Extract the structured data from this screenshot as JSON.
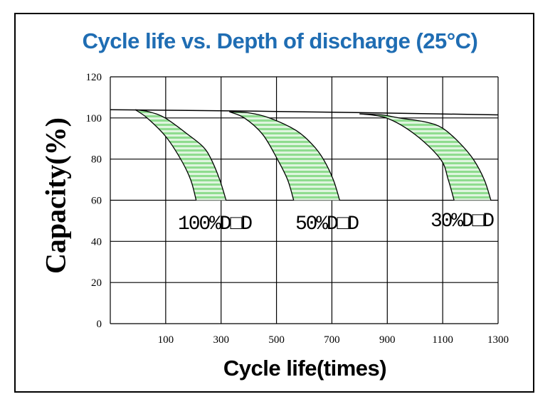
{
  "chart_data": {
    "type": "area",
    "title": "Cycle life vs. Depth of discharge (25°C)",
    "xlabel": "Cycle life(times)",
    "ylabel": "Capacity(%)",
    "xlim": [
      -100,
      1300
    ],
    "ylim": [
      0,
      120
    ],
    "xticks": [
      100,
      300,
      500,
      700,
      900,
      1100,
      1300
    ],
    "yticks": [
      0,
      20,
      40,
      60,
      80,
      100,
      120
    ],
    "grid": true,
    "fill_color": "#8fdc8f",
    "title_color": "#1f6db3",
    "baseline": [
      [
        -100,
        104
      ],
      [
        300,
        103.5
      ],
      [
        700,
        102.8
      ],
      [
        1300,
        101.5
      ]
    ],
    "series": [
      {
        "name": "100%D□D",
        "lower": [
          [
            -10,
            104
          ],
          [
            33,
            100
          ],
          [
            100,
            91
          ],
          [
            154,
            80
          ],
          [
            190,
            70
          ],
          [
            210,
            60
          ]
        ],
        "upper": [
          [
            -10,
            104
          ],
          [
            40,
            103
          ],
          [
            98,
            100
          ],
          [
            180,
            92
          ],
          [
            235,
            86
          ],
          [
            264,
            80
          ],
          [
            295,
            70
          ],
          [
            318,
            60
          ]
        ]
      },
      {
        "name": "50%D□D",
        "lower": [
          [
            330,
            103
          ],
          [
            384,
            100
          ],
          [
            450,
            92
          ],
          [
            503,
            80
          ],
          [
            540,
            70
          ],
          [
            562,
            60
          ]
        ],
        "upper": [
          [
            330,
            103
          ],
          [
            400,
            102.5
          ],
          [
            475,
            100
          ],
          [
            570,
            94
          ],
          [
            630,
            87
          ],
          [
            669,
            80
          ],
          [
            705,
            70
          ],
          [
            728,
            60
          ]
        ]
      },
      {
        "name": "30%D□D",
        "lower": [
          [
            800,
            102
          ],
          [
            897,
            100
          ],
          [
            1000,
            92
          ],
          [
            1092,
            80
          ],
          [
            1120,
            70
          ],
          [
            1141,
            60
          ]
        ],
        "upper": [
          [
            800,
            102
          ],
          [
            880,
            101.5
          ],
          [
            944,
            100
          ],
          [
            1040,
            98
          ],
          [
            1100,
            95
          ],
          [
            1160,
            88
          ],
          [
            1210,
            80
          ],
          [
            1250,
            70
          ],
          [
            1274,
            60
          ]
        ]
      }
    ]
  }
}
